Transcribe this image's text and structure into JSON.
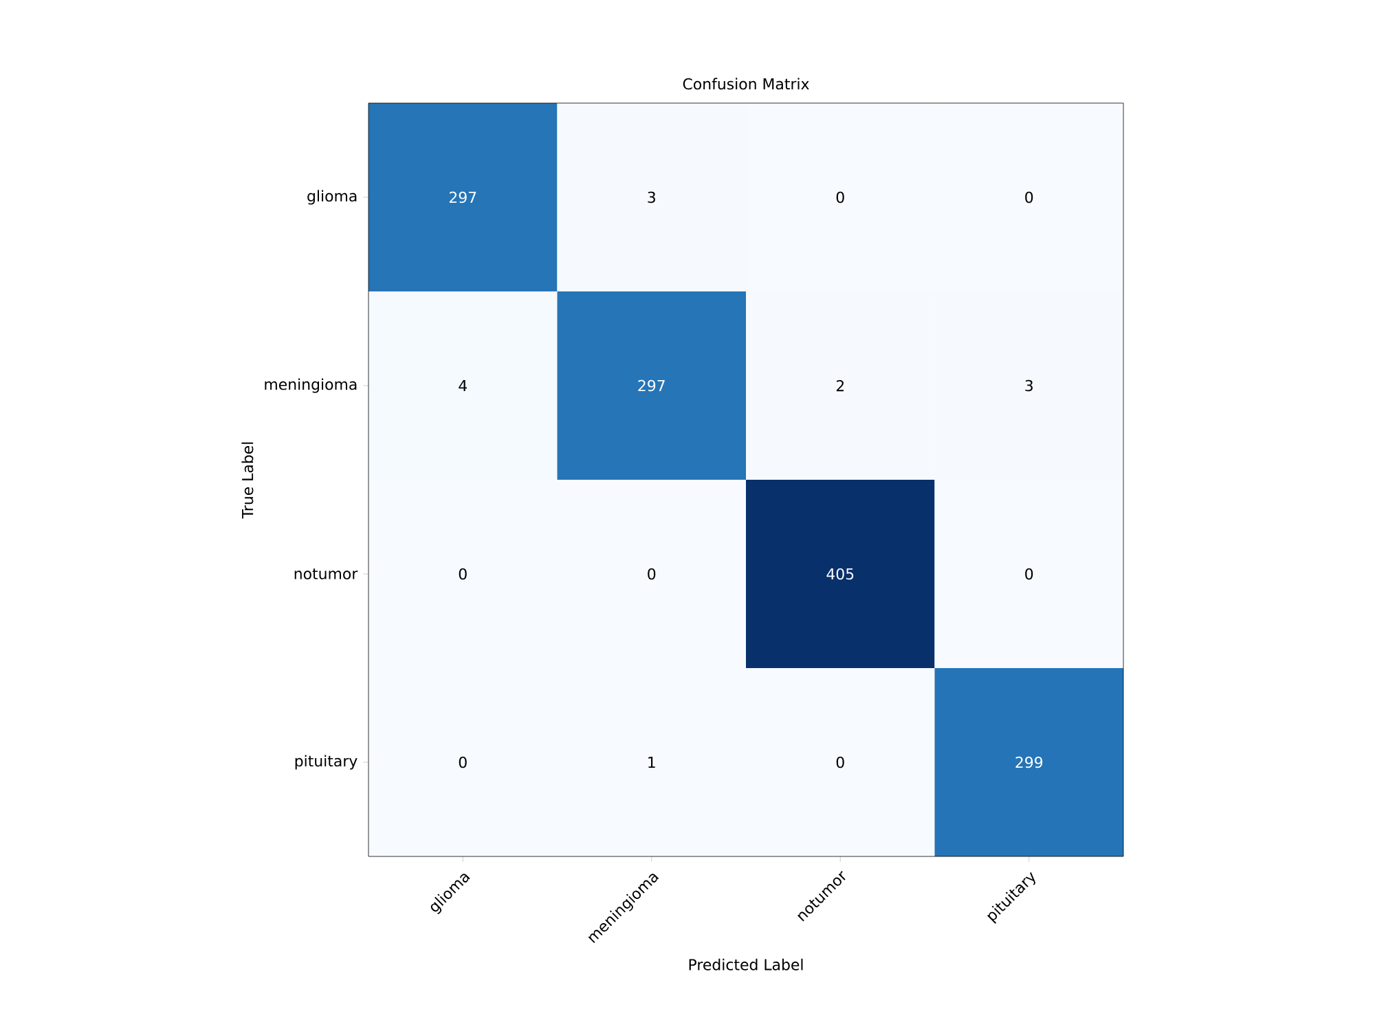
{
  "chart_data": {
    "type": "heatmap",
    "title": "Confusion Matrix",
    "xlabel": "Predicted Label",
    "ylabel": "True Label",
    "categories": [
      "glioma",
      "meningioma",
      "notumor",
      "pituitary"
    ],
    "y_categories": [
      "glioma",
      "meningioma",
      "notumor",
      "pituitary"
    ],
    "cells": [
      [
        297,
        3,
        0,
        0
      ],
      [
        4,
        297,
        2,
        3
      ],
      [
        0,
        0,
        405,
        0
      ],
      [
        0,
        1,
        0,
        299
      ]
    ],
    "data_labels": true
  }
}
